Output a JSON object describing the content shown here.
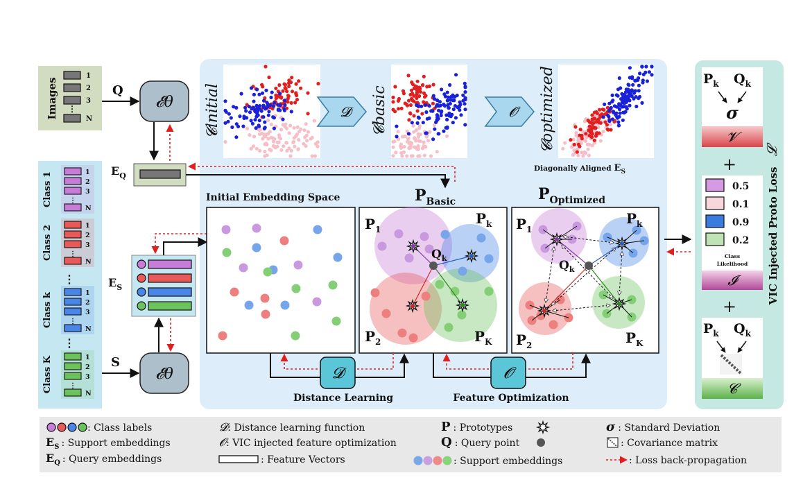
{
  "inputs": {
    "images_label": "Images",
    "image_rows": [
      "1",
      "2",
      "3",
      "N"
    ],
    "q_symbol": "Q",
    "s_symbol": "S",
    "encoder_label": "𝓔θ",
    "classes": [
      {
        "label": "Class 1",
        "color": "#c77dd8"
      },
      {
        "label": "Class 2",
        "color": "#e85a5a"
      },
      {
        "label": "Class k",
        "color": "#4a86e8"
      },
      {
        "label": "Class K",
        "color": "#6cc35e"
      }
    ],
    "class_rows": [
      "1",
      "2",
      "3",
      "N"
    ],
    "eq_label": "E",
    "eq_sub": "Q",
    "es_label": "E",
    "es_sub": "S"
  },
  "scatter": {
    "initial_label": "𝓒initial",
    "basic_label": "𝓒basic",
    "optimized_label": "𝓒optimized",
    "d_symbol": "𝓓",
    "o_symbol": "𝓞",
    "diag_caption": "Diagonally Aligned",
    "diag_caption_sym": "E",
    "diag_caption_sub": "S"
  },
  "panels": {
    "initial_title": "Initial Embedding Space",
    "basic_title": "P",
    "basic_sub": "Basic",
    "optimized_title": "P",
    "optimized_sub": "Optimized",
    "p1": "P",
    "p1_sub": "1",
    "p2": "P",
    "p2_sub": "2",
    "pk": "P",
    "pk_sub": "k",
    "pK": "P",
    "pK_sub": "K",
    "qk": "Q",
    "qk_sub": "k",
    "distance_learning": "Distance Learning",
    "feature_optimization": "Feature Optimization",
    "d_symbol": "𝓓",
    "o_symbol": "𝓞"
  },
  "loss": {
    "title": "VIC Injected Proto Loss",
    "title_sym": "𝓛",
    "pk": "P",
    "pk_sub": "k",
    "qk": "Q",
    "qk_sub": "k",
    "sigma": "σ",
    "v_sym": "𝓥",
    "i_sym": "𝓘",
    "c_sym": "𝓒",
    "plus": "+",
    "likelihoods": [
      {
        "value": "0.5",
        "color": "#d59ae3"
      },
      {
        "value": "0.1",
        "color": "#f8d7dc"
      },
      {
        "value": "0.9",
        "color": "#3b7be0"
      },
      {
        "value": "0.2",
        "color": "#bfe3b4"
      }
    ],
    "likelihood_caption_1": "Class",
    "likelihood_caption_2": "Likelihood"
  },
  "legend": {
    "class_labels": ": Class labels",
    "support_emb_sym": "E",
    "support_emb_sub": "S",
    "support_emb": ": Support embeddings",
    "query_emb_sym": "E",
    "query_emb_sub": "Q",
    "query_emb": ": Query embeddings",
    "d_sym": "𝓓",
    "d_text": ": Distance learning function",
    "o_sym": "𝓞",
    "o_text": ": VIC injected feature optimization",
    "fv_text": ": Feature Vectors",
    "p_sym": "P",
    "p_text": ": Prototypes",
    "q_sym": "Q",
    "q_text": ": Query point",
    "se_text": ": Support embeddings",
    "sigma_sym": "σ",
    "sigma_text": ": Standard Deviation",
    "cov_text": ": Covariance matrix",
    "loss_text": ": Loss back-propagation"
  },
  "colors": {
    "purple": "#c77dd8",
    "red": "#e85a5a",
    "blue": "#4a86e8",
    "green": "#6cc35e",
    "panel_bg": "#ddeefa",
    "loss_bg": "#c5e9e2",
    "input_bg": "#c5e7f2",
    "images_bg": "#d2dcc0",
    "encoder": "#aebfcc",
    "legend_bg": "#e8e8e8"
  }
}
